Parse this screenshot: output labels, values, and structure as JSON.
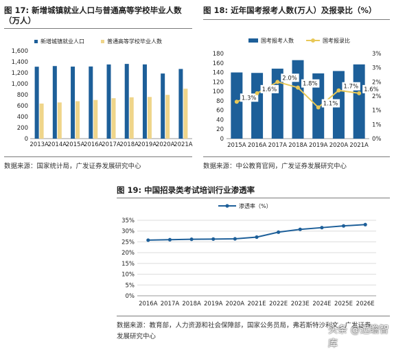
{
  "colors": {
    "bar_blue": "#1d5f99",
    "bar_yellow": "#efd58a",
    "line_yellow": "#e8c858",
    "line_blue": "#1d5f99"
  },
  "chart_data": [
    {
      "type": "bar",
      "figure_label": "图 17:",
      "title": "新增城镇就业人口与普通高等学校毕业人数",
      "title_line2": "（万人）",
      "categories": [
        "2013A",
        "2014A",
        "2015A",
        "2016A",
        "2017A",
        "2018A",
        "2019A",
        "2020A",
        "2021A"
      ],
      "series": [
        {
          "name": "新增城镇就业人口",
          "values": [
            1310,
            1322,
            1312,
            1314,
            1351,
            1361,
            1352,
            1186,
            1269
          ]
        },
        {
          "name": "普通高等学校毕业人数",
          "values": [
            639,
            659,
            681,
            704,
            736,
            753,
            759,
            797,
            909
          ]
        }
      ],
      "ylim": [
        0,
        1600
      ],
      "yticks": [
        "0",
        "200",
        "400",
        "600",
        "800",
        "1,000",
        "1,200",
        "1,400",
        "1,600"
      ],
      "grid": false,
      "legend": "top",
      "source": "数据来源：国家统计局，广发证券发展研究中心"
    },
    {
      "type": "bar",
      "figure_label": "图 18:",
      "title": "近年国考报考人数(万人）及报录比（%）",
      "categories": [
        "2015A",
        "2016A",
        "2017A",
        "2018A",
        "2019A",
        "2020A",
        "2021A"
      ],
      "series": [
        {
          "name": "国考报考人数",
          "values": [
            140,
            139,
            148,
            166,
            138,
            143,
            157
          ]
        },
        {
          "name": "国考报录比",
          "values": [
            1.3,
            1.6,
            2.0,
            1.8,
            1.1,
            1.7,
            1.6
          ]
        }
      ],
      "line_labels": [
        "1.3%",
        "1.6%",
        "2.0%",
        "1.8%",
        "1.1%",
        "1.7%",
        "1.6%"
      ],
      "ylim": [
        0,
        180
      ],
      "yticks": [
        "0",
        "20",
        "40",
        "60",
        "80",
        "100",
        "120",
        "140",
        "160",
        "180"
      ],
      "y2lim": [
        0,
        3
      ],
      "y2ticks": [
        "0%",
        "1%",
        "1%",
        "2%",
        "2%",
        "3%",
        "3%"
      ],
      "grid": false,
      "legend": "top",
      "source": "数据来源：中公教育官网，广发证券发展研究中心"
    },
    {
      "type": "line",
      "figure_label": "图 19:",
      "title": "中国招录类考试培训行业渗透率",
      "categories": [
        "2016A",
        "2017A",
        "2018A",
        "2019A",
        "2020A",
        "2021E",
        "2022E",
        "2023E",
        "2024E",
        "2025E",
        "2026E"
      ],
      "series": [
        {
          "name": "渗透率（%）",
          "values": [
            25.8,
            26.0,
            26.2,
            26.3,
            26.4,
            27.2,
            29.5,
            30.8,
            31.6,
            32.4,
            33.0
          ]
        }
      ],
      "ylim": [
        0,
        35
      ],
      "yticks": [
        "0%",
        "5%",
        "10%",
        "15%",
        "20%",
        "25%",
        "30%",
        "35%"
      ],
      "grid": true,
      "legend": "top",
      "source_line1": "数据来源：教育部，人力资源和社会保障部，国家公务员局，弗若斯特沙利文，广发证券",
      "source_line2": "发展研究中心"
    }
  ],
  "watermark": "头条 @远瞻智库"
}
